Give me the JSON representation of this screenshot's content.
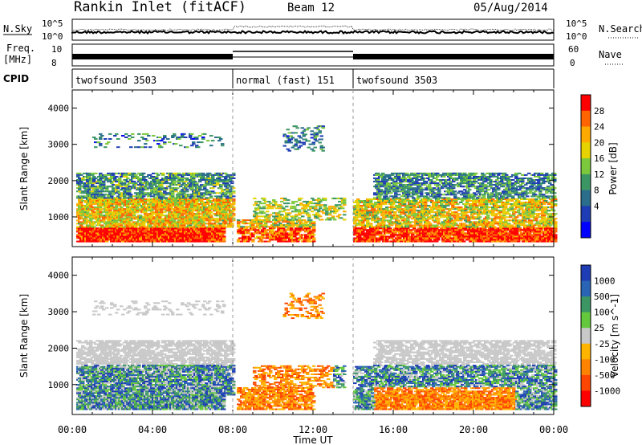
{
  "header": {
    "station": "Rankin Inlet (fitACF)",
    "beam": "Beam 12",
    "date": "05/Aug/2014"
  },
  "noise_panel": {
    "left_label": "N.Sky",
    "right_label": "N.Search",
    "tick_top": "10^5",
    "tick_bottom": "10^0"
  },
  "freq_panel": {
    "left_label_1": "Freq.",
    "left_label_2": "[MHz]",
    "right_label": "Nave",
    "left_tick_top": "10",
    "left_tick_bottom": "8",
    "right_tick_top": "60",
    "right_tick_bottom": "0"
  },
  "cpid_panel": {
    "label": "CPID",
    "segments": [
      {
        "name": "twofsound 3503",
        "start_h": 0,
        "end_h": 8
      },
      {
        "name": "normal (fast) 151",
        "start_h": 8,
        "end_h": 14
      },
      {
        "name": "twofsound 3503",
        "start_h": 14,
        "end_h": 24
      }
    ]
  },
  "chart_data": [
    {
      "type": "heatmap",
      "title": "",
      "xlabel": "Time UT",
      "ylabel": "Slant Range [km]",
      "x_range_hours": [
        0,
        24
      ],
      "x_ticks": [
        "00:00",
        "04:00",
        "08:00",
        "12:00",
        "16:00",
        "20:00",
        "00:00"
      ],
      "ylim": [
        180,
        4500
      ],
      "y_ticks": [
        1000,
        2000,
        3000,
        4000
      ],
      "colorbar": {
        "label": "Power [dB]",
        "ticks": [
          "28",
          "24",
          "20",
          "16",
          "12",
          "8",
          "4"
        ],
        "colors": [
          "#ff0000",
          "#ff6400",
          "#ffaa00",
          "#e6d200",
          "#7cc83c",
          "#3c9664",
          "#2a6e8c",
          "#1e3cb4",
          "#0000ff"
        ]
      }
    },
    {
      "type": "heatmap",
      "title": "",
      "xlabel": "Time UT",
      "ylabel": "Slant Range [km]",
      "x_range_hours": [
        0,
        24
      ],
      "x_ticks": [
        "00:00",
        "04:00",
        "08:00",
        "12:00",
        "16:00",
        "20:00",
        "00:00"
      ],
      "ylim": [
        180,
        4500
      ],
      "y_ticks": [
        1000,
        2000,
        3000,
        4000
      ],
      "colorbar": {
        "label": "Velocity [m s^-1]",
        "ticks": [
          "1000",
          "500",
          "100",
          "25",
          "-25",
          "-100",
          "-500",
          "-1000"
        ],
        "colors": [
          "#1e3cb4",
          "#2a64b4",
          "#3c9664",
          "#64c83c",
          "#c8c8c8",
          "#ffb400",
          "#ff8200",
          "#ff4600",
          "#ff0000"
        ]
      }
    }
  ],
  "colors": {
    "grid_dash": "#999999",
    "fill_noise": "#000000"
  }
}
